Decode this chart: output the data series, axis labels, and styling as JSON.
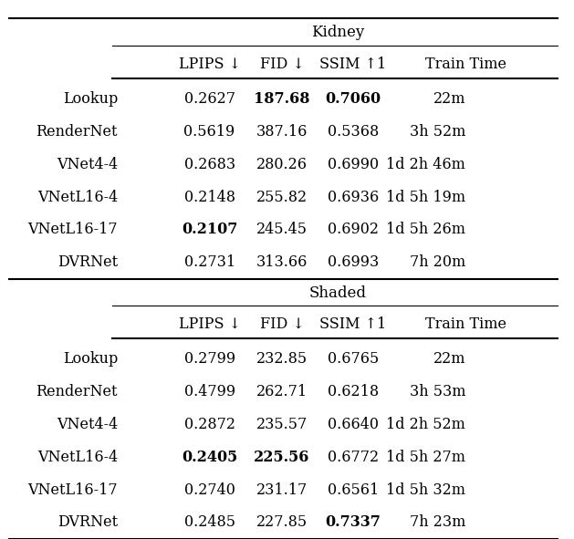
{
  "kidney_title": "Kidney",
  "shaded_title": "Shaded",
  "col_headers": [
    "LPIPS ↓",
    "FID ↓",
    "SSIM ↑1",
    "Train Time"
  ],
  "row_labels": [
    "Lookup",
    "RenderNet",
    "VNet4-4",
    "VNetL16-4",
    "VNetL16-17",
    "DVRNet"
  ],
  "kidney_data": [
    [
      "0.2627",
      "187.68",
      "0.7060",
      "22m"
    ],
    [
      "0.5619",
      "387.16",
      "0.5368",
      "3h 52m"
    ],
    [
      "0.2683",
      "280.26",
      "0.6990",
      "1d 2h 46m"
    ],
    [
      "0.2148",
      "255.82",
      "0.6936",
      "1d 5h 19m"
    ],
    [
      "0.2107",
      "245.45",
      "0.6902",
      "1d 5h 26m"
    ],
    [
      "0.2731",
      "313.66",
      "0.6993",
      "7h 20m"
    ]
  ],
  "shaded_data": [
    [
      "0.2799",
      "232.85",
      "0.6765",
      "22m"
    ],
    [
      "0.4799",
      "262.71",
      "0.6218",
      "3h 53m"
    ],
    [
      "0.2872",
      "235.57",
      "0.6640",
      "1d 2h 52m"
    ],
    [
      "0.2405",
      "225.56",
      "0.6772",
      "1d 5h 27m"
    ],
    [
      "0.2740",
      "231.17",
      "0.6561",
      "1d 5h 32m"
    ],
    [
      "0.2485",
      "227.85",
      "0.7337",
      "7h 23m"
    ]
  ],
  "kidney_bold": [
    [
      false,
      true,
      true,
      false
    ],
    [
      false,
      false,
      false,
      false
    ],
    [
      false,
      false,
      false,
      false
    ],
    [
      false,
      false,
      false,
      false
    ],
    [
      true,
      false,
      false,
      false
    ],
    [
      false,
      false,
      false,
      false
    ]
  ],
  "shaded_bold": [
    [
      false,
      false,
      false,
      false
    ],
    [
      false,
      false,
      false,
      false
    ],
    [
      false,
      false,
      false,
      false
    ],
    [
      true,
      true,
      false,
      false
    ],
    [
      false,
      false,
      false,
      false
    ],
    [
      false,
      false,
      true,
      false
    ]
  ],
  "bg_color": "white",
  "font_size": 11.5,
  "title_font_size": 12
}
